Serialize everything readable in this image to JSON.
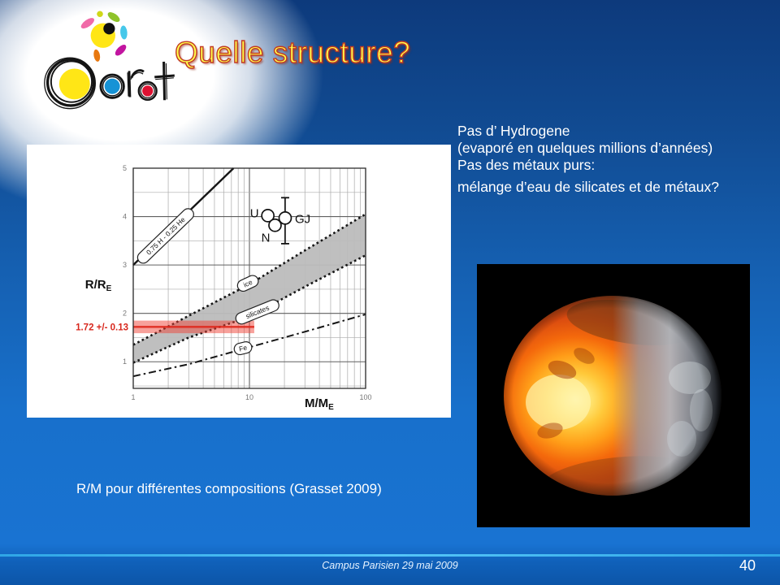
{
  "slide": {
    "title": "Quelle structure?",
    "footer": "Campus Parisien 29 mai 2009",
    "page_number": "40"
  },
  "logo": {
    "alt": "CoRoT"
  },
  "notes": {
    "lines": [
      "Pas d’ Hydrogene",
      "(evaporé  en quelques millions d’années)",
      "Pas des métaux purs:",
      "mélange d’eau de silicates et de métaux?"
    ]
  },
  "chart_caption": "R/M pour différentes compositions (Grasset 2009)",
  "colors": {
    "accent_cyan": "#3fb8f2",
    "title_fill": "#ffff4d",
    "title_outline": "#c23a22",
    "highlight_red": "#ef4438",
    "band_gray": "#bcbcbc"
  },
  "chart_data": {
    "type": "line",
    "title": "",
    "xlabel": "M/M_E",
    "ylabel": "R/R_E",
    "x_scale": "log",
    "xlim": [
      1,
      100
    ],
    "ylim": [
      0.45,
      5
    ],
    "x_ticks": [
      "1",
      "10",
      "100"
    ],
    "y_ticks": [
      1,
      2,
      3,
      4,
      5
    ],
    "grid": "on",
    "series": [
      {
        "name": "0.75 H - 0.25 He",
        "style": "solid",
        "x": [
          1,
          7.3
        ],
        "y": [
          3.0,
          5.0
        ],
        "label_at": {
          "x": 1.9,
          "y": 3.6,
          "angle": -44
        }
      },
      {
        "name": "ice",
        "style": "dotted",
        "x": [
          1,
          3,
          10,
          30,
          100
        ],
        "y": [
          1.35,
          1.95,
          2.6,
          3.3,
          4.05
        ],
        "label_at": {
          "x": 9.7,
          "y": 2.62,
          "angle": -25
        }
      },
      {
        "name": "silicates",
        "style": "dotted",
        "x": [
          1,
          3,
          10,
          30,
          100
        ],
        "y": [
          0.98,
          1.5,
          1.93,
          2.55,
          3.2
        ],
        "label_at": {
          "x": 11.7,
          "y": 2.03,
          "angle": -22
        }
      },
      {
        "name": "Fe",
        "style": "dashdot",
        "x": [
          1,
          3,
          10,
          30,
          100
        ],
        "y": [
          0.7,
          0.95,
          1.3,
          1.62,
          1.98
        ],
        "label_at": {
          "x": 8.8,
          "y": 1.28,
          "angle": -14
        }
      }
    ],
    "band_between": [
      "ice",
      "silicates"
    ],
    "band_color": "#bcbcbc",
    "highlight_band": {
      "label": "1.72 +/- 0.13",
      "y_center": 1.72,
      "y_low": 1.59,
      "y_high": 1.85,
      "x_start": 1,
      "x_end": 11,
      "color": "#ef4438",
      "line_color": "#e0271c"
    },
    "points": [
      {
        "label": "U",
        "x": 14.4,
        "y": 4.02,
        "label_pos": "left-up"
      },
      {
        "label": "N",
        "x": 16.6,
        "y": 3.82,
        "label_pos": "left-down"
      },
      {
        "label": "GJ",
        "x": 20.3,
        "y": 3.97,
        "y_err_low": 3.44,
        "y_err_high": 4.39,
        "label_pos": "right"
      }
    ]
  }
}
